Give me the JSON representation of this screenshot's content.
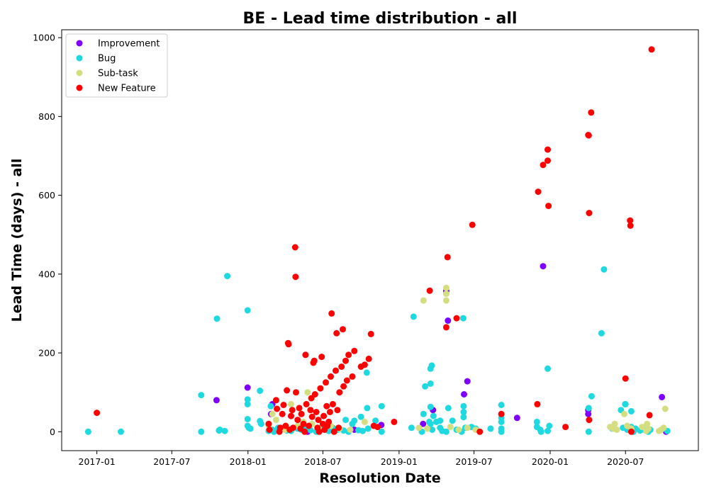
{
  "chart_data": {
    "type": "scatter",
    "title": "BE - Lead time distribution - all",
    "xlabel": "Resolution Date",
    "ylabel": "Lead Time (days) - all",
    "x_type": "date",
    "xlim": [
      "2016-10-08",
      "2020-12-24"
    ],
    "ylim": [
      -48,
      1020
    ],
    "x_ticks": [
      "2017-01-01",
      "2017-07-01",
      "2018-01-01",
      "2018-07-01",
      "2019-01-01",
      "2019-07-01",
      "2020-01-01",
      "2020-07-01"
    ],
    "x_tick_labels": [
      "2017-01",
      "2017-07",
      "2018-01",
      "2018-07",
      "2019-01",
      "2019-07",
      "2020-01",
      "2020-07"
    ],
    "y_ticks": [
      0,
      200,
      400,
      600,
      800,
      1000
    ],
    "y_tick_labels": [
      "0",
      "200",
      "400",
      "600",
      "800",
      "1000"
    ],
    "grid": false,
    "legend_position": "top-left",
    "series": [
      {
        "name": "Improvement",
        "color": "#8000ff",
        "points": [
          [
            "2017-10-17",
            80
          ],
          [
            "2017-12-31",
            112
          ],
          [
            "2018-02-26",
            45
          ],
          [
            "2018-03-01",
            70
          ],
          [
            "2018-05-25",
            0
          ],
          [
            "2018-09-15",
            5
          ],
          [
            "2018-11-19",
            17
          ],
          [
            "2019-02-28",
            20
          ],
          [
            "2019-03-24",
            55
          ],
          [
            "2019-04-25",
            357
          ],
          [
            "2019-04-29",
            282
          ],
          [
            "2019-06-07",
            95
          ],
          [
            "2019-06-15",
            128
          ],
          [
            "2019-10-13",
            35
          ],
          [
            "2019-12-15",
            420
          ],
          [
            "2020-04-02",
            45
          ],
          [
            "2020-04-02",
            55
          ],
          [
            "2020-07-20",
            0
          ],
          [
            "2020-09-27",
            88
          ],
          [
            "2020-10-07",
            0
          ]
        ]
      },
      {
        "name": "Bug",
        "color": "#1ed9e0",
        "points": [
          [
            "2016-12-11",
            0
          ],
          [
            "2017-02-28",
            0
          ],
          [
            "2017-09-10",
            93
          ],
          [
            "2017-09-10",
            0
          ],
          [
            "2017-10-18",
            287
          ],
          [
            "2017-10-23",
            3
          ],
          [
            "2017-10-25",
            5
          ],
          [
            "2017-11-06",
            2
          ],
          [
            "2017-11-12",
            395
          ],
          [
            "2017-12-31",
            308
          ],
          [
            "2017-12-31",
            82
          ],
          [
            "2017-12-31",
            70
          ],
          [
            "2017-12-31",
            32
          ],
          [
            "2017-12-31",
            15
          ],
          [
            "2018-01-03",
            10
          ],
          [
            "2018-01-07",
            8
          ],
          [
            "2018-01-30",
            104
          ],
          [
            "2018-01-30",
            27
          ],
          [
            "2018-02-02",
            20
          ],
          [
            "2018-02-20",
            2
          ],
          [
            "2018-02-25",
            65
          ],
          [
            "2018-03-01",
            5
          ],
          [
            "2018-03-05",
            0
          ],
          [
            "2018-03-15",
            10
          ],
          [
            "2018-04-05",
            3
          ],
          [
            "2018-04-15",
            2
          ],
          [
            "2018-05-01",
            8
          ],
          [
            "2018-05-10",
            5
          ],
          [
            "2018-05-20",
            12
          ],
          [
            "2018-06-01",
            4
          ],
          [
            "2018-06-15",
            0
          ],
          [
            "2018-07-01",
            6
          ],
          [
            "2018-07-15",
            2
          ],
          [
            "2018-07-25",
            10
          ],
          [
            "2018-08-05",
            5
          ],
          [
            "2018-08-20",
            3
          ],
          [
            "2018-08-25",
            30
          ],
          [
            "2018-09-01",
            0
          ],
          [
            "2018-09-10",
            20
          ],
          [
            "2018-09-15",
            28
          ],
          [
            "2018-09-25",
            4
          ],
          [
            "2018-10-01",
            38
          ],
          [
            "2018-10-05",
            2
          ],
          [
            "2018-10-15",
            150
          ],
          [
            "2018-10-16",
            60
          ],
          [
            "2018-10-18",
            8
          ],
          [
            "2018-11-05",
            28
          ],
          [
            "2018-11-20",
            65
          ],
          [
            "2018-11-20",
            0
          ],
          [
            "2019-01-31",
            10
          ],
          [
            "2019-02-05",
            292
          ],
          [
            "2019-02-25",
            0
          ],
          [
            "2019-03-01",
            45
          ],
          [
            "2019-03-05",
            115
          ],
          [
            "2019-03-15",
            25
          ],
          [
            "2019-03-18",
            160
          ],
          [
            "2019-03-18",
            122
          ],
          [
            "2019-03-18",
            63
          ],
          [
            "2019-03-18",
            20
          ],
          [
            "2019-03-21",
            168
          ],
          [
            "2019-03-22",
            5
          ],
          [
            "2019-03-25",
            40
          ],
          [
            "2019-04-01",
            25
          ],
          [
            "2019-04-10",
            28
          ],
          [
            "2019-04-10",
            10
          ],
          [
            "2019-04-15",
            2
          ],
          [
            "2019-04-25",
            0
          ],
          [
            "2019-04-30",
            60
          ],
          [
            "2019-05-10",
            28
          ],
          [
            "2019-05-20",
            5
          ],
          [
            "2019-06-01",
            0
          ],
          [
            "2019-06-05",
            288
          ],
          [
            "2019-06-06",
            65
          ],
          [
            "2019-06-06",
            50
          ],
          [
            "2019-06-06",
            37
          ],
          [
            "2019-06-10",
            10
          ],
          [
            "2019-06-25",
            12
          ],
          [
            "2019-07-05",
            8
          ],
          [
            "2019-08-10",
            8
          ],
          [
            "2019-09-05",
            68
          ],
          [
            "2019-09-05",
            35
          ],
          [
            "2019-09-05",
            25
          ],
          [
            "2019-09-05",
            8
          ],
          [
            "2019-09-05",
            0
          ],
          [
            "2019-11-30",
            25
          ],
          [
            "2019-11-30",
            12
          ],
          [
            "2019-12-08",
            5
          ],
          [
            "2019-12-10",
            0
          ],
          [
            "2019-12-26",
            160
          ],
          [
            "2019-12-26",
            2
          ],
          [
            "2019-12-30",
            15
          ],
          [
            "2020-04-03",
            60
          ],
          [
            "2020-04-03",
            0
          ],
          [
            "2020-04-10",
            90
          ],
          [
            "2020-05-04",
            250
          ],
          [
            "2020-05-10",
            412
          ],
          [
            "2020-05-30",
            8
          ],
          [
            "2020-06-20",
            55
          ],
          [
            "2020-06-25",
            10
          ],
          [
            "2020-06-30",
            70
          ],
          [
            "2020-07-01",
            70
          ],
          [
            "2020-07-05",
            5
          ],
          [
            "2020-07-15",
            52
          ],
          [
            "2020-07-15",
            12
          ],
          [
            "2020-07-20",
            0
          ],
          [
            "2020-07-25",
            8
          ],
          [
            "2020-08-05",
            3
          ],
          [
            "2020-08-15",
            5
          ],
          [
            "2020-08-25",
            0
          ],
          [
            "2020-08-30",
            5
          ],
          [
            "2020-09-30",
            8
          ],
          [
            "2020-10-10",
            2
          ]
        ]
      },
      {
        "name": "Sub-task",
        "color": "#d4dd80",
        "points": [
          [
            "2018-02-20",
            15
          ],
          [
            "2018-03-01",
            45
          ],
          [
            "2018-03-10",
            30
          ],
          [
            "2018-04-01",
            5
          ],
          [
            "2018-04-15",
            70
          ],
          [
            "2018-05-01",
            15
          ],
          [
            "2018-05-15",
            25
          ],
          [
            "2018-05-25",
            100
          ],
          [
            "2018-06-05",
            20
          ],
          [
            "2018-06-20",
            10
          ],
          [
            "2018-07-05",
            5
          ],
          [
            "2018-07-20",
            15
          ],
          [
            "2018-08-10",
            8
          ],
          [
            "2018-09-05",
            5
          ],
          [
            "2018-10-10",
            25
          ],
          [
            "2019-02-18",
            10
          ],
          [
            "2019-03-01",
            333
          ],
          [
            "2019-03-10",
            8
          ],
          [
            "2019-04-25",
            365
          ],
          [
            "2019-04-25",
            350
          ],
          [
            "2019-04-25",
            333
          ],
          [
            "2019-05-05",
            12
          ],
          [
            "2019-05-25",
            5
          ],
          [
            "2019-06-15",
            10
          ],
          [
            "2019-07-05",
            5
          ],
          [
            "2020-05-25",
            12
          ],
          [
            "2020-06-01",
            8
          ],
          [
            "2020-06-05",
            20
          ],
          [
            "2020-06-10",
            5
          ],
          [
            "2020-06-28",
            45
          ],
          [
            "2020-07-05",
            15
          ],
          [
            "2020-07-15",
            8
          ],
          [
            "2020-08-10",
            12
          ],
          [
            "2020-08-20",
            2
          ],
          [
            "2020-08-22",
            20
          ],
          [
            "2020-08-25",
            8
          ],
          [
            "2020-09-20",
            2
          ],
          [
            "2020-09-25",
            5
          ],
          [
            "2020-10-01",
            10
          ],
          [
            "2020-10-05",
            58
          ]
        ]
      },
      {
        "name": "New Feature",
        "color": "#ff0000",
        "points": [
          [
            "2017-01-01",
            48
          ],
          [
            "2018-02-20",
            20
          ],
          [
            "2018-02-22",
            5
          ],
          [
            "2018-03-10",
            80
          ],
          [
            "2018-03-12",
            58
          ],
          [
            "2018-03-18",
            0
          ],
          [
            "2018-03-20",
            10
          ],
          [
            "2018-03-25",
            45
          ],
          [
            "2018-03-28",
            68
          ],
          [
            "2018-04-02",
            15
          ],
          [
            "2018-04-05",
            105
          ],
          [
            "2018-04-08",
            225
          ],
          [
            "2018-04-09",
            222
          ],
          [
            "2018-04-12",
            5
          ],
          [
            "2018-04-15",
            40
          ],
          [
            "2018-04-18",
            55
          ],
          [
            "2018-04-20",
            10
          ],
          [
            "2018-04-25",
            468
          ],
          [
            "2018-04-26",
            393
          ],
          [
            "2018-04-27",
            100
          ],
          [
            "2018-05-01",
            30
          ],
          [
            "2018-05-05",
            60
          ],
          [
            "2018-05-08",
            8
          ],
          [
            "2018-05-10",
            45
          ],
          [
            "2018-05-15",
            20
          ],
          [
            "2018-05-18",
            0
          ],
          [
            "2018-05-20",
            195
          ],
          [
            "2018-05-22",
            70
          ],
          [
            "2018-05-28",
            15
          ],
          [
            "2018-06-01",
            55
          ],
          [
            "2018-06-03",
            85
          ],
          [
            "2018-06-05",
            38
          ],
          [
            "2018-06-08",
            175
          ],
          [
            "2018-06-10",
            180
          ],
          [
            "2018-06-12",
            95
          ],
          [
            "2018-06-15",
            50
          ],
          [
            "2018-06-18",
            10
          ],
          [
            "2018-06-20",
            30
          ],
          [
            "2018-06-22",
            0
          ],
          [
            "2018-06-25",
            110
          ],
          [
            "2018-06-28",
            190
          ],
          [
            "2018-07-01",
            20
          ],
          [
            "2018-07-03",
            40
          ],
          [
            "2018-07-05",
            5
          ],
          [
            "2018-07-08",
            125
          ],
          [
            "2018-07-10",
            65
          ],
          [
            "2018-07-12",
            15
          ],
          [
            "2018-07-15",
            25
          ],
          [
            "2018-07-18",
            50
          ],
          [
            "2018-07-20",
            140
          ],
          [
            "2018-07-22",
            300
          ],
          [
            "2018-07-25",
            70
          ],
          [
            "2018-07-28",
            0
          ],
          [
            "2018-08-01",
            155
          ],
          [
            "2018-08-03",
            250
          ],
          [
            "2018-08-05",
            55
          ],
          [
            "2018-08-08",
            10
          ],
          [
            "2018-08-10",
            100
          ],
          [
            "2018-08-15",
            165
          ],
          [
            "2018-08-18",
            260
          ],
          [
            "2018-08-20",
            115
          ],
          [
            "2018-08-25",
            180
          ],
          [
            "2018-08-28",
            130
          ],
          [
            "2018-09-01",
            195
          ],
          [
            "2018-09-10",
            140
          ],
          [
            "2018-09-15",
            205
          ],
          [
            "2018-10-01",
            165
          ],
          [
            "2018-10-10",
            170
          ],
          [
            "2018-10-20",
            185
          ],
          [
            "2018-10-25",
            248
          ],
          [
            "2018-11-01",
            15
          ],
          [
            "2018-11-10",
            12
          ],
          [
            "2018-12-20",
            25
          ],
          [
            "2019-03-16",
            358
          ],
          [
            "2019-04-25",
            265
          ],
          [
            "2019-04-28",
            443
          ],
          [
            "2019-05-20",
            288
          ],
          [
            "2019-06-27",
            525
          ],
          [
            "2019-07-15",
            0
          ],
          [
            "2019-09-05",
            45
          ],
          [
            "2019-12-01",
            70
          ],
          [
            "2019-12-03",
            609
          ],
          [
            "2019-12-15",
            677
          ],
          [
            "2019-12-26",
            716
          ],
          [
            "2019-12-26",
            688
          ],
          [
            "2019-12-28",
            573
          ],
          [
            "2020-02-07",
            12
          ],
          [
            "2020-04-02",
            753
          ],
          [
            "2020-04-03",
            752
          ],
          [
            "2020-04-04",
            555
          ],
          [
            "2020-04-04",
            30
          ],
          [
            "2020-04-09",
            810
          ],
          [
            "2020-07-01",
            135
          ],
          [
            "2020-07-12",
            536
          ],
          [
            "2020-07-13",
            523
          ],
          [
            "2020-07-15",
            0
          ],
          [
            "2020-08-28",
            42
          ],
          [
            "2020-09-02",
            970
          ]
        ]
      }
    ]
  }
}
